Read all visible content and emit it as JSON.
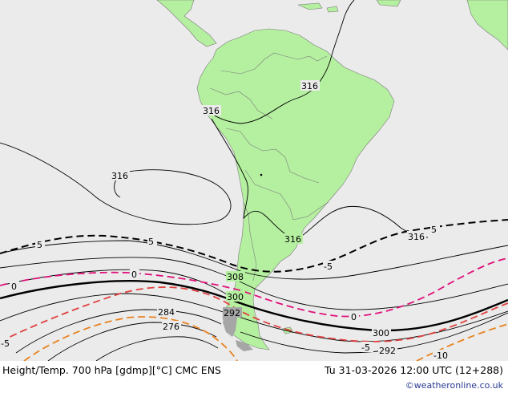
{
  "title": "Height/Temp. 700 hPa [gdmp][°C] CMC ENS",
  "valid_time": "Tu 31-03-2026 12:00 UTC (12+288)",
  "credit": "©weatheronline.co.uk",
  "colors": {
    "ocean": "#ebebeb",
    "land": "#b5f0a0",
    "land_grey": "#a6a6a6",
    "height_contour": "#000000",
    "temp_zero": "#e0107a",
    "temp_neg5": "#e04040",
    "temp_neg10": "#e8821e"
  },
  "height_labels": {
    "h316_a": "316",
    "h316_b": "316",
    "h316_c": "316",
    "h316_d": "316",
    "h316_e": "316",
    "h308": "308",
    "h300_a": "300",
    "h300_b": "300",
    "h292_a": "292",
    "h292_b": "292",
    "h284": "284",
    "h276": "276"
  },
  "temp_labels": {
    "t5_a": "5",
    "t5_b": "5",
    "t5_c": "5",
    "t5_d": "-5",
    "t0_a": "0",
    "t0_b": "0",
    "t0_c": "0",
    "tm5_a": "-5",
    "tm5_b": "-5",
    "tm10": "-10"
  }
}
